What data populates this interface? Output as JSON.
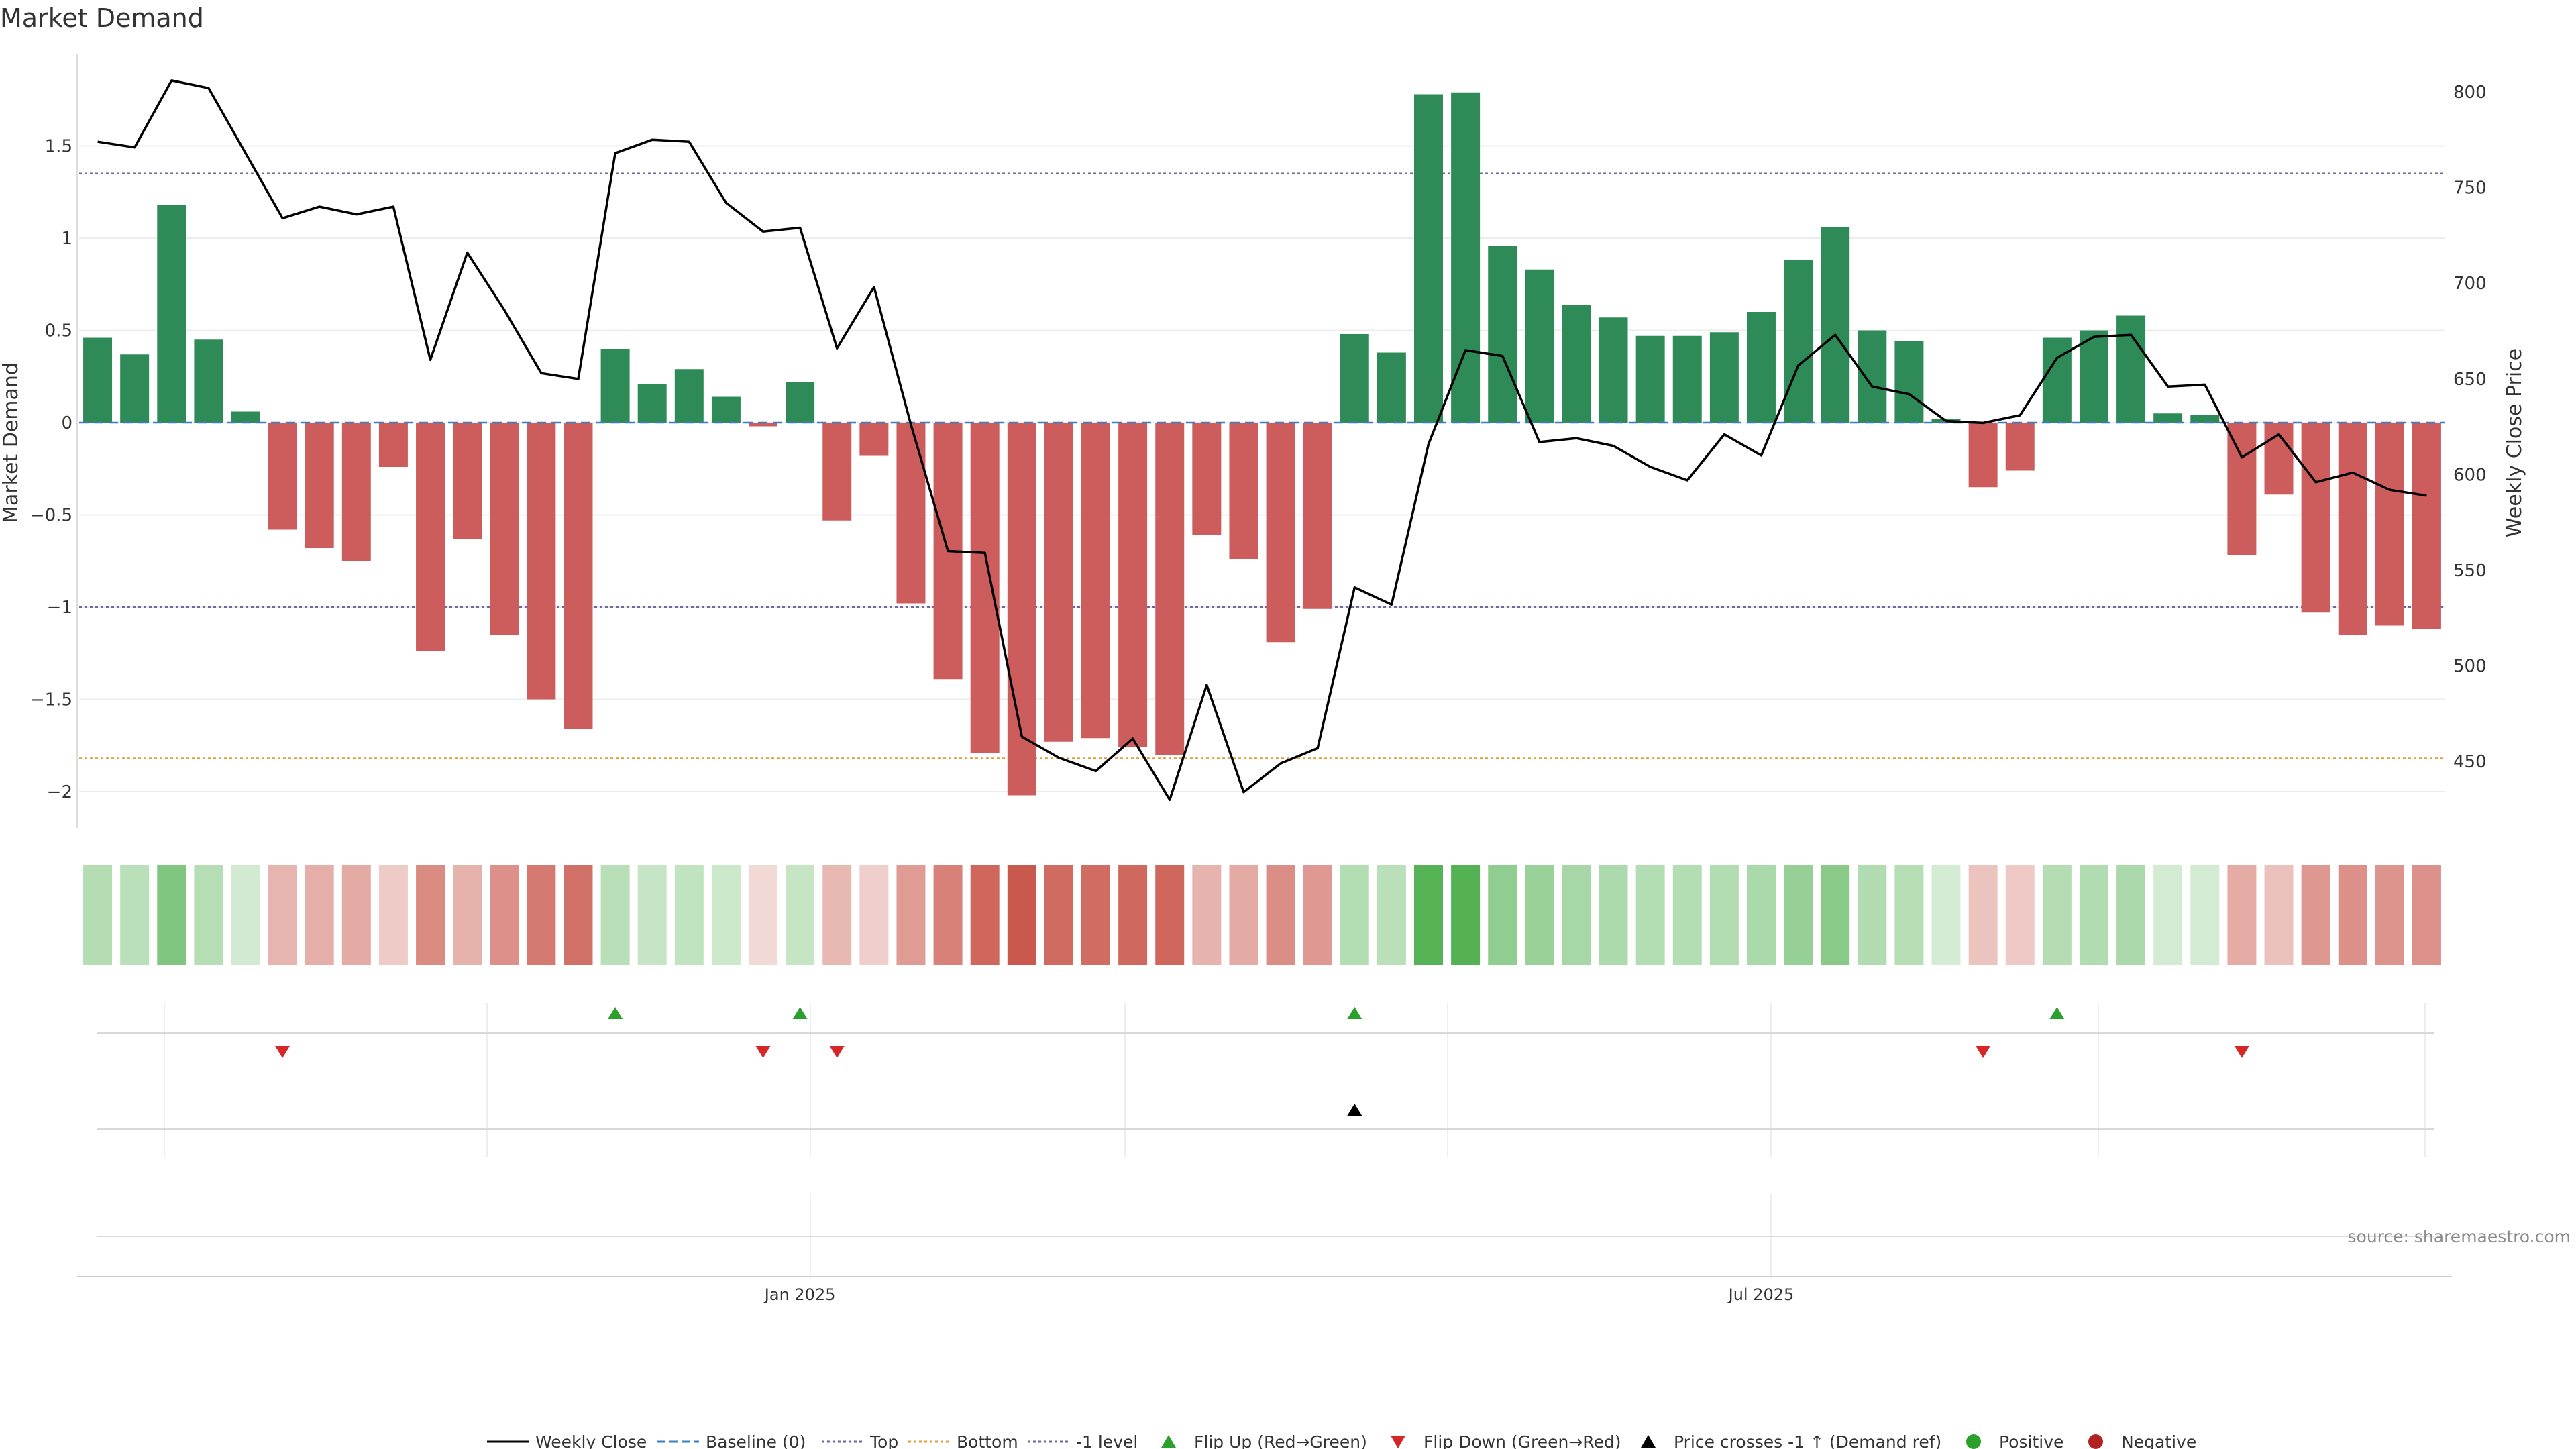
{
  "chart_data": {
    "type": "bar",
    "title": "Market Demand",
    "ylabel": "Market Demand",
    "y2label": "Weekly Close Price",
    "ylim": [
      -2.2,
      2.0
    ],
    "y2lim": [
      415,
      820
    ],
    "yticks": [
      1.5,
      1,
      0.5,
      0,
      -0.5,
      -1,
      -1.5,
      -2
    ],
    "y2ticks": [
      800,
      750,
      700,
      650,
      600,
      550,
      500,
      450
    ],
    "xtick_labels": [
      {
        "index": 19.5,
        "label": "Jan 2025"
      },
      {
        "index": 45.5,
        "label": "Jul 2025"
      }
    ],
    "reference_lines": {
      "baseline": 0,
      "top": 1.35,
      "bottom": -1.82,
      "minus_one": -1.0
    },
    "demand": [
      0.46,
      0.37,
      1.18,
      0.45,
      0.06,
      -0.58,
      -0.68,
      -0.75,
      -0.24,
      -1.24,
      -0.63,
      -1.15,
      -1.5,
      -1.66,
      0.4,
      0.21,
      0.29,
      0.14,
      -0.02,
      0.22,
      -0.53,
      -0.18,
      -0.98,
      -1.39,
      -1.79,
      -2.02,
      -1.73,
      -1.71,
      -1.76,
      -1.8,
      -0.61,
      -0.74,
      -1.19,
      -1.01,
      0.48,
      0.38,
      1.78,
      1.79,
      0.96,
      0.83,
      0.64,
      0.57,
      0.47,
      0.47,
      0.49,
      0.6,
      0.88,
      1.06,
      0.5,
      0.44,
      0.02,
      -0.35,
      -0.26,
      0.46,
      0.5,
      0.58,
      0.05,
      0.04,
      -0.72,
      -0.39,
      -1.03,
      -1.15,
      -1.1,
      -1.12
    ],
    "weekly_close": [
      774,
      771,
      806,
      802,
      768,
      734,
      740,
      736,
      740,
      660,
      716,
      686,
      653,
      650,
      768,
      775,
      774,
      742,
      727,
      729,
      666,
      698,
      626,
      560,
      559,
      463,
      452,
      445,
      462,
      430,
      490,
      434,
      449,
      457,
      541,
      532,
      616,
      665,
      662,
      617,
      619,
      615,
      604,
      597,
      621,
      610,
      657,
      673,
      646,
      642,
      628,
      627,
      631,
      661,
      672,
      673,
      646,
      647,
      609,
      621,
      596,
      601,
      592,
      589
    ],
    "signals": {
      "flip_up": [
        14,
        19,
        34,
        53
      ],
      "flip_down": [
        5,
        18,
        20,
        51,
        58
      ],
      "price_cross": [
        34
      ]
    },
    "legend": [
      {
        "label": "Weekly Close",
        "marker": "line-solid",
        "color": "#000000"
      },
      {
        "label": "Baseline (0)",
        "marker": "line-dash",
        "color": "#3a7ebf"
      },
      {
        "label": "Top",
        "marker": "line-dot",
        "color": "#6a6a9a"
      },
      {
        "label": "Bottom",
        "marker": "line-dot",
        "color": "#e69a3a"
      },
      {
        "label": "-1 level",
        "marker": "line-dot",
        "color": "#6a6a9a"
      },
      {
        "label": "Flip Up (Red→Green)",
        "marker": "triangle-up",
        "color": "#2ca02c"
      },
      {
        "label": "Flip Down (Green→Red)",
        "marker": "triangle-down",
        "color": "#d62728"
      },
      {
        "label": "Price crosses -1 ↑ (Demand ref)",
        "marker": "triangle-up",
        "color": "#000000"
      },
      {
        "label": "Positive",
        "marker": "circle",
        "color": "#2ca02c"
      },
      {
        "label": "Negative",
        "marker": "circle",
        "color": "#b22222"
      }
    ],
    "colors": {
      "positive": "#2e8b57",
      "negative": "#cd5c5c",
      "flip_up": "#2ca02c",
      "flip_down": "#d62728",
      "close_line": "#000000",
      "top_line": "#6a6a9a",
      "bottom_line": "#e69a3a",
      "baseline_line": "#3a7ebf"
    },
    "source": "source: sharemaestro.com"
  }
}
